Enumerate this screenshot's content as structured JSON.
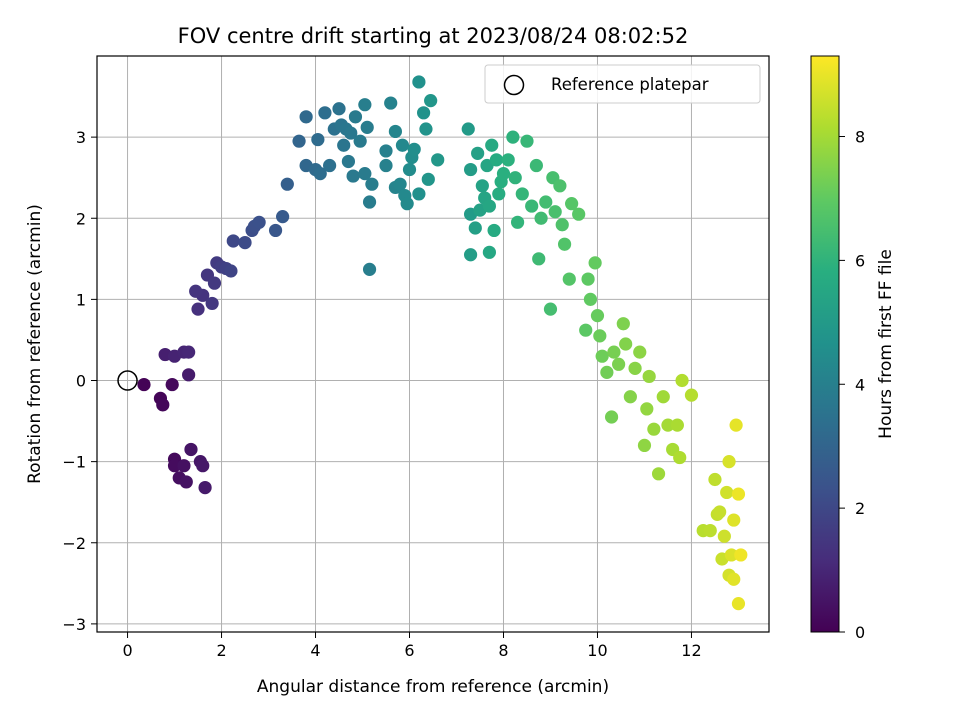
{
  "chart_data": {
    "type": "scatter",
    "title": "FOV centre drift starting at 2023/08/24 08:02:52",
    "xlabel": "Angular distance from reference (arcmin)",
    "ylabel": "Rotation from reference (arcmin)",
    "xlim": [
      -0.65,
      13.65
    ],
    "ylim": [
      -3.1,
      4.0
    ],
    "xticks": [
      "0",
      "2",
      "4",
      "6",
      "8",
      "10",
      "12"
    ],
    "yticks": [
      "−3",
      "−2",
      "−1",
      "0",
      "1",
      "2",
      "3"
    ],
    "grid": true,
    "legend": {
      "position": "top-right",
      "entries": [
        "Reference platepar"
      ]
    },
    "reference_point": {
      "x": 0,
      "y": 0
    },
    "colorbar": {
      "label": "Hours from first FF file",
      "range": [
        0,
        9.3
      ],
      "ticks": [
        "0",
        "2",
        "4",
        "6",
        "8"
      ],
      "colormap": "viridis"
    },
    "points": [
      [
        0.35,
        -0.05,
        0.05
      ],
      [
        0.7,
        -0.22,
        0.1
      ],
      [
        0.75,
        -0.3,
        0.15
      ],
      [
        0.95,
        -0.05,
        0.2
      ],
      [
        1.0,
        -0.97,
        0.25
      ],
      [
        1.0,
        -1.05,
        0.3
      ],
      [
        1.1,
        -1.2,
        0.35
      ],
      [
        1.2,
        -1.05,
        0.4
      ],
      [
        1.25,
        -1.25,
        0.45
      ],
      [
        1.35,
        -0.85,
        0.5
      ],
      [
        1.55,
        -1.0,
        0.55
      ],
      [
        1.6,
        -1.05,
        0.6
      ],
      [
        1.65,
        -1.32,
        0.65
      ],
      [
        1.3,
        0.07,
        0.7
      ],
      [
        0.8,
        0.32,
        0.8
      ],
      [
        1.0,
        0.3,
        0.9
      ],
      [
        1.2,
        0.35,
        0.95
      ],
      [
        1.3,
        0.35,
        1.0
      ],
      [
        1.5,
        0.88,
        1.3
      ],
      [
        1.6,
        1.05,
        1.35
      ],
      [
        1.45,
        1.1,
        1.4
      ],
      [
        1.7,
        1.3,
        1.45
      ],
      [
        1.8,
        0.95,
        1.5
      ],
      [
        1.85,
        1.2,
        1.55
      ],
      [
        1.9,
        1.45,
        1.6
      ],
      [
        2.0,
        1.4,
        1.7
      ],
      [
        2.1,
        1.38,
        1.8
      ],
      [
        2.2,
        1.35,
        1.9
      ],
      [
        2.25,
        1.72,
        2.0
      ],
      [
        2.5,
        1.7,
        2.1
      ],
      [
        2.65,
        1.85,
        2.2
      ],
      [
        2.7,
        1.9,
        2.25
      ],
      [
        2.8,
        1.95,
        2.3
      ],
      [
        3.15,
        1.85,
        2.5
      ],
      [
        3.3,
        2.02,
        2.6
      ],
      [
        3.4,
        2.42,
        2.8
      ],
      [
        3.65,
        2.95,
        3.0
      ],
      [
        3.8,
        2.65,
        3.1
      ],
      [
        3.8,
        3.25,
        3.15
      ],
      [
        4.0,
        2.6,
        3.2
      ],
      [
        4.05,
        2.97,
        3.25
      ],
      [
        4.1,
        2.55,
        3.3
      ],
      [
        4.2,
        3.3,
        3.35
      ],
      [
        4.3,
        2.65,
        3.4
      ],
      [
        4.4,
        3.1,
        3.45
      ],
      [
        4.5,
        3.35,
        3.5
      ],
      [
        4.55,
        3.15,
        3.55
      ],
      [
        4.6,
        2.9,
        3.6
      ],
      [
        4.65,
        3.1,
        3.65
      ],
      [
        4.7,
        2.7,
        3.7
      ],
      [
        4.75,
        3.05,
        3.72
      ],
      [
        4.8,
        2.52,
        3.75
      ],
      [
        4.85,
        3.25,
        3.78
      ],
      [
        4.95,
        2.95,
        3.8
      ],
      [
        5.05,
        2.55,
        3.82
      ],
      [
        5.1,
        3.12,
        3.85
      ],
      [
        5.15,
        2.2,
        3.88
      ],
      [
        5.2,
        2.42,
        3.9
      ],
      [
        5.15,
        1.37,
        3.92
      ],
      [
        5.05,
        3.4,
        3.95
      ],
      [
        5.5,
        2.83,
        4.0
      ],
      [
        5.5,
        2.65,
        4.05
      ],
      [
        5.6,
        3.42,
        4.1
      ],
      [
        5.7,
        2.38,
        4.15
      ],
      [
        5.7,
        3.07,
        4.2
      ],
      [
        5.8,
        2.42,
        4.25
      ],
      [
        5.85,
        2.9,
        4.3
      ],
      [
        5.9,
        2.28,
        4.35
      ],
      [
        5.95,
        2.18,
        4.4
      ],
      [
        6.0,
        2.6,
        4.45
      ],
      [
        6.05,
        2.75,
        4.5
      ],
      [
        6.1,
        2.85,
        4.55
      ],
      [
        6.2,
        2.3,
        4.6
      ],
      [
        6.2,
        3.68,
        4.65
      ],
      [
        6.3,
        3.3,
        4.7
      ],
      [
        6.35,
        3.1,
        4.75
      ],
      [
        6.4,
        2.48,
        4.8
      ],
      [
        6.45,
        3.45,
        4.85
      ],
      [
        6.6,
        2.72,
        4.9
      ],
      [
        7.25,
        3.1,
        5.0
      ],
      [
        7.3,
        2.05,
        5.05
      ],
      [
        7.3,
        2.6,
        5.1
      ],
      [
        7.3,
        1.55,
        5.15
      ],
      [
        7.4,
        1.88,
        5.2
      ],
      [
        7.45,
        2.8,
        5.25
      ],
      [
        7.5,
        2.1,
        5.3
      ],
      [
        7.55,
        2.4,
        5.35
      ],
      [
        7.6,
        2.25,
        5.4
      ],
      [
        7.65,
        2.65,
        5.45
      ],
      [
        7.7,
        2.15,
        5.5
      ],
      [
        7.7,
        1.58,
        5.55
      ],
      [
        7.75,
        2.9,
        5.6
      ],
      [
        7.8,
        1.85,
        5.65
      ],
      [
        7.85,
        2.72,
        5.7
      ],
      [
        7.9,
        2.3,
        5.75
      ],
      [
        7.95,
        2.45,
        5.8
      ],
      [
        8.0,
        2.55,
        5.85
      ],
      [
        8.1,
        2.72,
        5.9
      ],
      [
        8.2,
        3.0,
        5.95
      ],
      [
        8.25,
        2.5,
        6.0
      ],
      [
        8.3,
        1.95,
        6.05
      ],
      [
        8.4,
        2.3,
        6.1
      ],
      [
        8.5,
        2.95,
        6.15
      ],
      [
        8.6,
        2.15,
        6.2
      ],
      [
        8.7,
        2.65,
        6.25
      ],
      [
        8.75,
        1.5,
        6.3
      ],
      [
        8.8,
        2.0,
        6.35
      ],
      [
        8.9,
        2.2,
        6.4
      ],
      [
        9.0,
        0.88,
        6.45
      ],
      [
        9.05,
        2.5,
        6.5
      ],
      [
        9.1,
        2.08,
        6.55
      ],
      [
        9.2,
        2.4,
        6.6
      ],
      [
        9.25,
        1.92,
        6.65
      ],
      [
        9.3,
        1.68,
        6.7
      ],
      [
        9.4,
        1.25,
        6.75
      ],
      [
        9.45,
        2.18,
        6.8
      ],
      [
        9.6,
        2.05,
        6.85
      ],
      [
        9.75,
        0.62,
        6.9
      ],
      [
        9.8,
        1.25,
        6.95
      ],
      [
        9.85,
        1.0,
        7.0
      ],
      [
        9.95,
        1.45,
        7.05
      ],
      [
        10.0,
        0.8,
        7.1
      ],
      [
        10.05,
        0.55,
        7.15
      ],
      [
        10.1,
        0.3,
        7.2
      ],
      [
        10.2,
        0.1,
        7.25
      ],
      [
        10.3,
        -0.45,
        7.3
      ],
      [
        10.35,
        0.35,
        7.35
      ],
      [
        10.45,
        0.2,
        7.4
      ],
      [
        10.55,
        0.7,
        7.45
      ],
      [
        10.6,
        0.45,
        7.5
      ],
      [
        10.7,
        -0.2,
        7.55
      ],
      [
        10.8,
        0.15,
        7.6
      ],
      [
        10.9,
        0.35,
        7.65
      ],
      [
        11.0,
        -0.8,
        7.7
      ],
      [
        11.05,
        -0.35,
        7.75
      ],
      [
        11.1,
        0.05,
        7.8
      ],
      [
        11.2,
        -0.6,
        7.85
      ],
      [
        11.3,
        -1.15,
        7.9
      ],
      [
        11.4,
        -0.2,
        7.95
      ],
      [
        11.5,
        -0.55,
        8.0
      ],
      [
        11.6,
        -0.85,
        8.05
      ],
      [
        11.7,
        -0.55,
        8.1
      ],
      [
        11.75,
        -0.95,
        8.15
      ],
      [
        11.8,
        0.0,
        8.2
      ],
      [
        12.0,
        -0.18,
        8.25
      ],
      [
        12.25,
        -1.85,
        8.3
      ],
      [
        12.4,
        -1.85,
        8.35
      ],
      [
        12.5,
        -1.22,
        8.4
      ],
      [
        12.55,
        -1.65,
        8.45
      ],
      [
        12.6,
        -1.62,
        8.5
      ],
      [
        12.65,
        -2.2,
        8.55
      ],
      [
        12.7,
        -1.92,
        8.6
      ],
      [
        12.75,
        -1.38,
        8.65
      ],
      [
        12.8,
        -2.4,
        8.7
      ],
      [
        12.8,
        -1.0,
        8.75
      ],
      [
        12.85,
        -2.15,
        8.8
      ],
      [
        12.9,
        -1.72,
        8.85
      ],
      [
        12.9,
        -2.45,
        8.9
      ],
      [
        12.95,
        -0.55,
        8.95
      ],
      [
        13.0,
        -2.75,
        9.0
      ],
      [
        13.0,
        -1.4,
        9.05
      ],
      [
        13.05,
        -2.15,
        9.1
      ]
    ]
  }
}
